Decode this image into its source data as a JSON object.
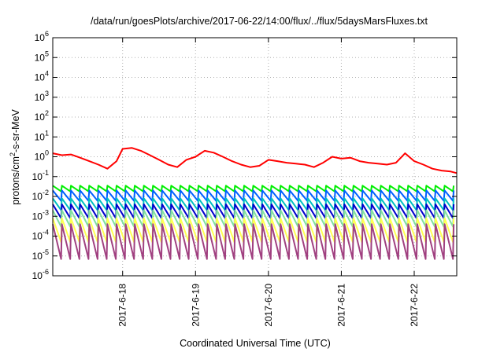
{
  "chart_data": {
    "type": "line",
    "title": "/data/run/goesPlots/archive/2017-06-22/14:00/flux/../flux/5daysMarsFluxes.txt",
    "xlabel": "Coordinated Universal Time (UTC)",
    "ylabel_parts": {
      "base": "protons/cm",
      "sup": "2",
      "rest": "-s-sr-MeV"
    },
    "y_scale": "log",
    "ylim": [
      1e-06,
      1000000.0
    ],
    "y_ticks": [
      {
        "value": 1e-06,
        "base": "10",
        "exp": "-6"
      },
      {
        "value": 1e-05,
        "base": "10",
        "exp": "-5"
      },
      {
        "value": 0.0001,
        "base": "10",
        "exp": "-4"
      },
      {
        "value": 0.001,
        "base": "10",
        "exp": "-3"
      },
      {
        "value": 0.01,
        "base": "10",
        "exp": "-2"
      },
      {
        "value": 0.1,
        "base": "10",
        "exp": "-1"
      },
      {
        "value": 1,
        "base": "10",
        "exp": "0"
      },
      {
        "value": 10.0,
        "base": "10",
        "exp": "1"
      },
      {
        "value": 100.0,
        "base": "10",
        "exp": "2"
      },
      {
        "value": 1000.0,
        "base": "10",
        "exp": "3"
      },
      {
        "value": 10000.0,
        "base": "10",
        "exp": "4"
      },
      {
        "value": 100000.0,
        "base": "10",
        "exp": "5"
      },
      {
        "value": 1000000.0,
        "base": "10",
        "exp": "6"
      }
    ],
    "xlim": [
      "2017-06-17 01:00",
      "2017-06-22 14:00"
    ],
    "x_ticks": [
      "2017-6-18",
      "2017-6-19",
      "2017-6-20",
      "2017-6-21",
      "2017-6-22"
    ],
    "x_tick_values": [
      "2017-06-18 00:00",
      "2017-06-19 00:00",
      "2017-06-20 00:00",
      "2017-06-21 00:00",
      "2017-06-22 00:00"
    ],
    "grid": true,
    "legend": "none",
    "sawtooth_period_hours": 3,
    "series": [
      {
        "color": "#ff0000",
        "values": [
          [
            "2017-06-17 01:00",
            1.5
          ],
          [
            "2017-06-17 04:00",
            1.2
          ],
          [
            "2017-06-17 07:00",
            1.3
          ],
          [
            "2017-06-17 10:00",
            0.9
          ],
          [
            "2017-06-17 13:00",
            0.6
          ],
          [
            "2017-06-17 16:00",
            0.4
          ],
          [
            "2017-06-17 19:00",
            0.25
          ],
          [
            "2017-06-17 22:00",
            0.6
          ],
          [
            "2017-06-18 00:00",
            2.5
          ],
          [
            "2017-06-18 03:00",
            2.8
          ],
          [
            "2017-06-18 06:00",
            2.0
          ],
          [
            "2017-06-18 09:00",
            1.2
          ],
          [
            "2017-06-18 12:00",
            0.7
          ],
          [
            "2017-06-18 15:00",
            0.4
          ],
          [
            "2017-06-18 18:00",
            0.3
          ],
          [
            "2017-06-18 21:00",
            0.7
          ],
          [
            "2017-06-19 00:00",
            1.0
          ],
          [
            "2017-06-19 03:00",
            2.0
          ],
          [
            "2017-06-19 06:00",
            1.6
          ],
          [
            "2017-06-19 09:00",
            1.0
          ],
          [
            "2017-06-19 12:00",
            0.6
          ],
          [
            "2017-06-19 15:00",
            0.4
          ],
          [
            "2017-06-19 18:00",
            0.3
          ],
          [
            "2017-06-19 21:00",
            0.35
          ],
          [
            "2017-06-20 00:00",
            0.7
          ],
          [
            "2017-06-20 03:00",
            0.6
          ],
          [
            "2017-06-20 06:00",
            0.5
          ],
          [
            "2017-06-20 09:00",
            0.45
          ],
          [
            "2017-06-20 12:00",
            0.4
          ],
          [
            "2017-06-20 15:00",
            0.3
          ],
          [
            "2017-06-20 18:00",
            0.5
          ],
          [
            "2017-06-20 21:00",
            1.0
          ],
          [
            "2017-06-21 00:00",
            0.8
          ],
          [
            "2017-06-21 03:00",
            0.9
          ],
          [
            "2017-06-21 06:00",
            0.6
          ],
          [
            "2017-06-21 09:00",
            0.5
          ],
          [
            "2017-06-21 12:00",
            0.45
          ],
          [
            "2017-06-21 15:00",
            0.4
          ],
          [
            "2017-06-21 18:00",
            0.5
          ],
          [
            "2017-06-21 21:00",
            1.5
          ],
          [
            "2017-06-22 00:00",
            0.6
          ],
          [
            "2017-06-22 03:00",
            0.4
          ],
          [
            "2017-06-22 06:00",
            0.25
          ],
          [
            "2017-06-22 09:00",
            0.2
          ],
          [
            "2017-06-22 12:00",
            0.18
          ],
          [
            "2017-06-22 14:00",
            0.15
          ]
        ]
      },
      {
        "color": "#00ee00",
        "high": 0.035,
        "low": 0.018
      },
      {
        "color": "#0060ff",
        "high": 0.02,
        "low": 0.006
      },
      {
        "color": "#00c0c0",
        "high": 0.008,
        "low": 0.002
      },
      {
        "color": "#0000cc",
        "high": 0.004,
        "low": 0.0008
      },
      {
        "color": "#80e0a0",
        "high": 0.002,
        "low": 0.0003
      },
      {
        "color": "#ffff50",
        "high": 0.0008,
        "low": 5e-05
      },
      {
        "color": "#a04080",
        "high": 0.0004,
        "low": 7e-06
      }
    ]
  }
}
